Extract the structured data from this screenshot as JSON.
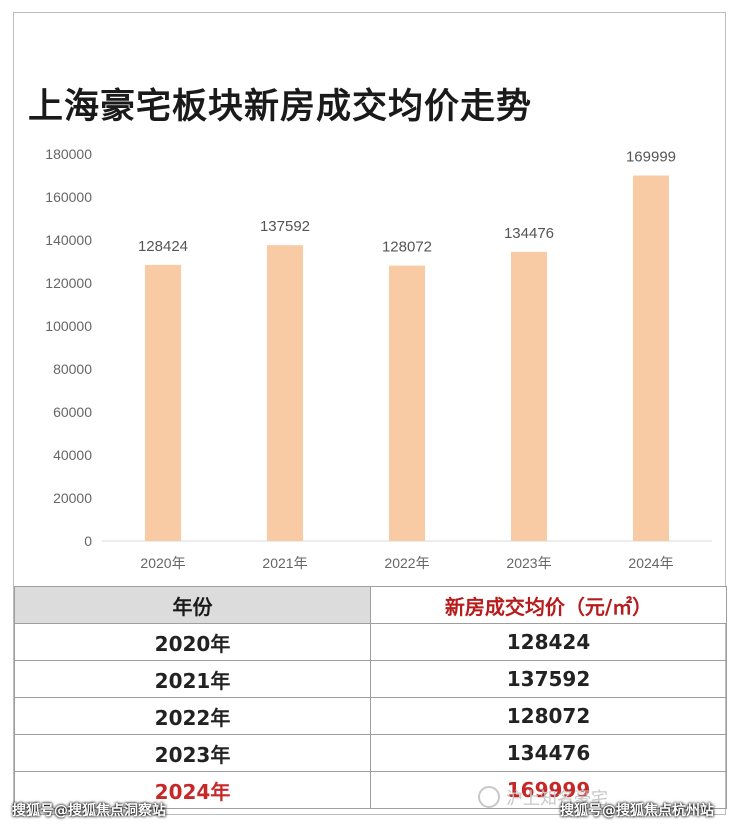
{
  "title": "上海豪宅板块新房成交均价走势",
  "chart_data": {
    "type": "bar",
    "title": "上海豪宅板块新房成交均价走势",
    "categories": [
      "2020年",
      "2021年",
      "2022年",
      "2023年",
      "2024年"
    ],
    "values": [
      128424,
      137592,
      128072,
      134476,
      169999
    ],
    "data_labels": [
      "128424",
      "137592",
      "128072",
      "134476",
      "169999"
    ],
    "y_ticks": [
      "0",
      "20000",
      "40000",
      "60000",
      "80000",
      "100000",
      "120000",
      "140000",
      "160000",
      "180000"
    ],
    "ylim": [
      0,
      180000
    ],
    "bar_color": "#f8cba4",
    "grid": false,
    "legend": "none"
  },
  "table": {
    "headers": [
      "年份",
      "新房成交均价（元/㎡）"
    ],
    "rows": [
      [
        "2020年",
        "128424"
      ],
      [
        "2021年",
        "137592"
      ],
      [
        "2022年",
        "128072"
      ],
      [
        "2023年",
        "134476"
      ],
      [
        "2024年",
        "169999"
      ]
    ],
    "highlight_row": 4,
    "header_accent": "#b71c1c",
    "highlight_color": "#c62828"
  },
  "watermarks": {
    "left": "搜狐号@搜狐焦点洞察站",
    "middle": "沪上知名豪宅",
    "right": "搜狐号@搜狐焦点杭州站"
  }
}
